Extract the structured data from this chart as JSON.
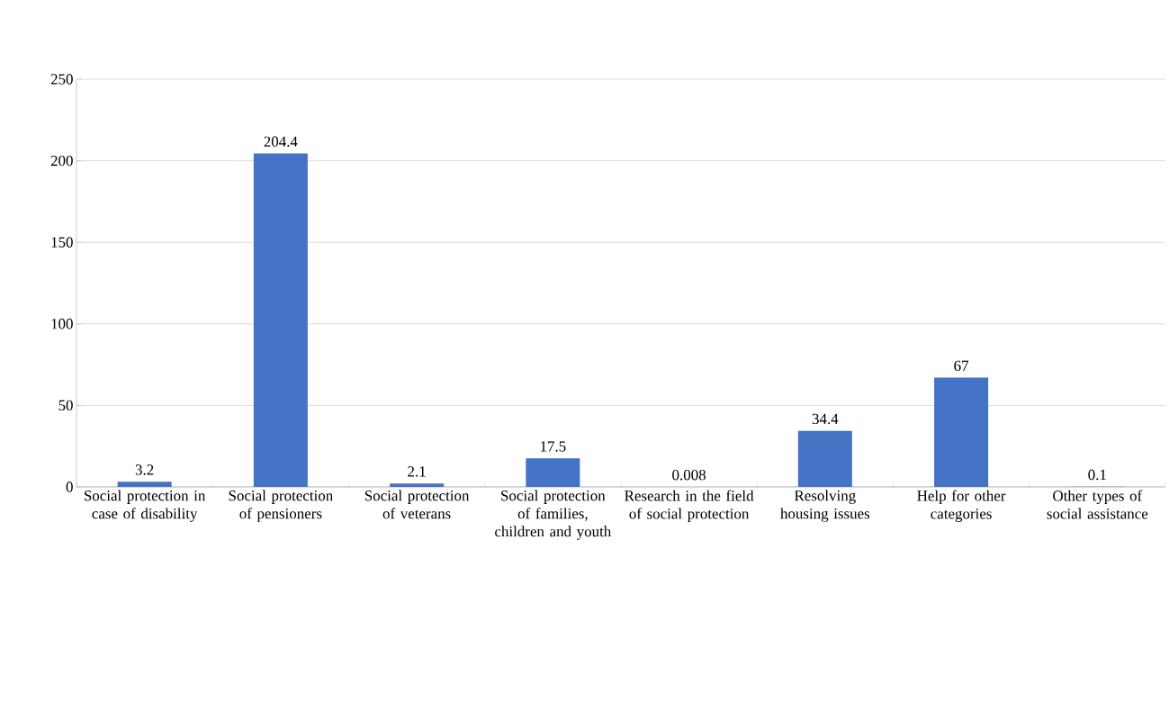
{
  "chart_data": {
    "type": "bar",
    "categories": [
      "Social protection in case of disability",
      "Social protection of pensioners",
      "Social protection of veterans",
      "Social protection of families, children and youth",
      "Research in the field of social protection",
      "Resolving housing issues",
      "Help for other categories",
      "Other types of social assistance"
    ],
    "values": [
      3.2,
      204.4,
      2.1,
      17.5,
      0.008,
      34.4,
      67,
      0.1
    ],
    "color": "#4472c4",
    "ylim": [
      0,
      250
    ],
    "yticks": [
      0,
      50,
      100,
      150,
      200,
      250
    ],
    "grid": "y",
    "data_labels": true
  }
}
